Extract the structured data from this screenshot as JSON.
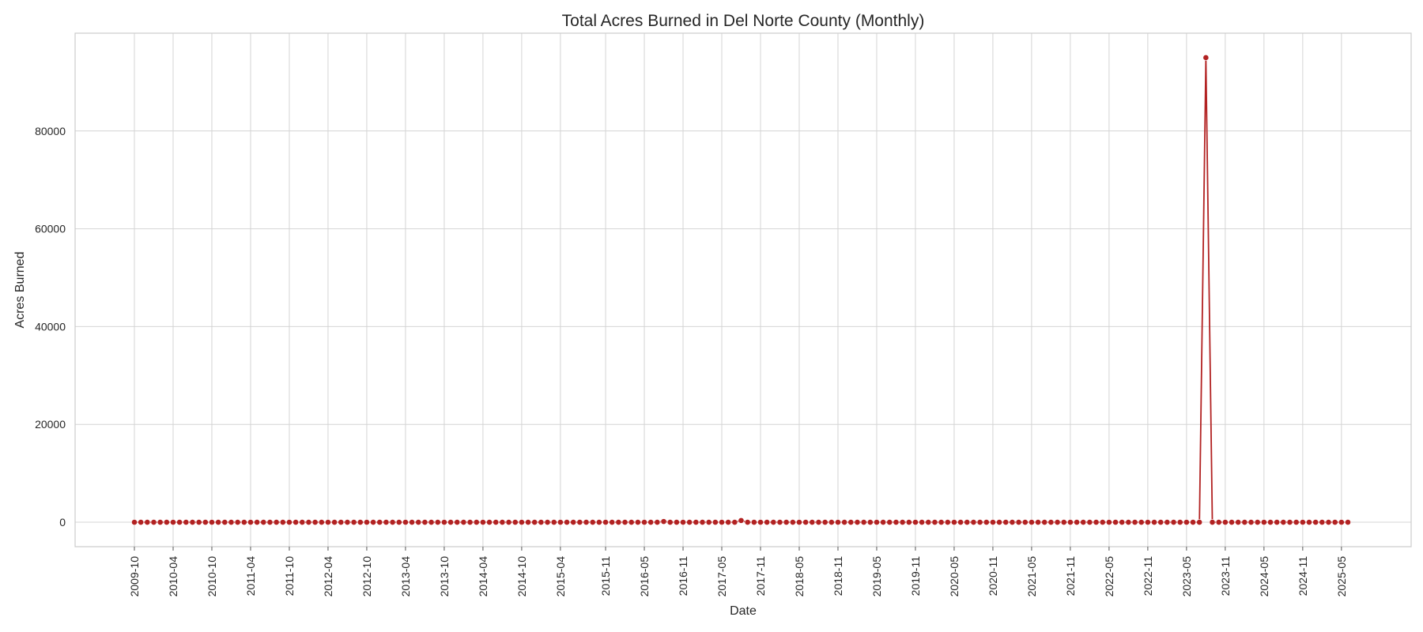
{
  "chart_data": {
    "type": "line",
    "title": "Total Acres Burned in Del Norte County (Monthly)",
    "xlabel": "Date",
    "ylabel": "Acres Burned",
    "x_start": "2009-10",
    "x_end": "2025-06",
    "ylim": [
      -5000,
      100000
    ],
    "yticks": [
      0,
      20000,
      40000,
      60000,
      80000
    ],
    "ytick_labels": [
      "0",
      "20000",
      "40000",
      "60000",
      "80000"
    ],
    "xticks": [
      "2009-10",
      "2010-04",
      "2010-10",
      "2011-04",
      "2011-10",
      "2012-04",
      "2012-10",
      "2013-04",
      "2013-10",
      "2014-04",
      "2014-10",
      "2015-04",
      "2015-11",
      "2016-05",
      "2016-11",
      "2017-05",
      "2017-11",
      "2018-05",
      "2018-11",
      "2019-05",
      "2019-11",
      "2020-05",
      "2020-11",
      "2021-05",
      "2021-11",
      "2022-05",
      "2022-11",
      "2023-05",
      "2023-11",
      "2024-05",
      "2024-11",
      "2025-05"
    ],
    "grid": true,
    "series": [
      {
        "color": "#b22222",
        "baseline_value": 0,
        "nonzero_points": [
          {
            "x": "2016-08",
            "y": 150
          },
          {
            "x": "2017-08",
            "y": 350
          },
          {
            "x": "2023-08",
            "y": 95000
          }
        ]
      }
    ]
  }
}
